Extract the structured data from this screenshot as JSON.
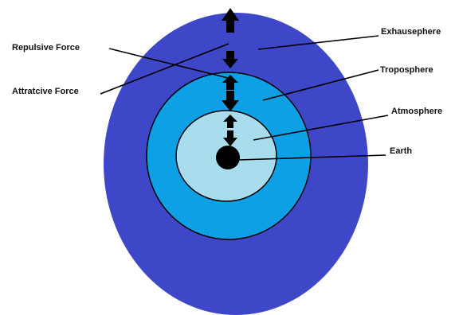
{
  "colors": {
    "exosphere": "#3f47c9",
    "troposphere": "#0ea0e4",
    "atmosphere": "#a9dcec",
    "earth": "#000000",
    "outline": "#000000",
    "arrow": "#000000"
  },
  "labels": {
    "repulsive_force": "Repulsive Force",
    "attractive_force": "Attratcive Force",
    "exosphere": "Exhausephere",
    "troposphere": "Troposphere",
    "atmosphere": "Atmosphere",
    "earth": "Earth"
  },
  "arrows": {
    "up": "up-arrow-icon",
    "down": "down-arrow-icon"
  }
}
